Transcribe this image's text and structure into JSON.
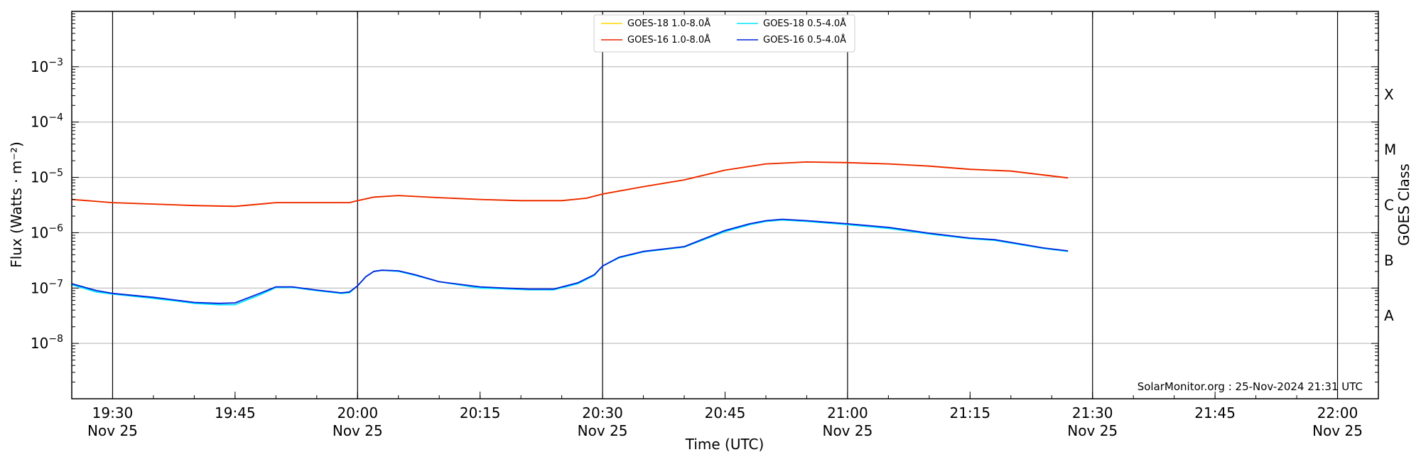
{
  "chart_data": {
    "type": "line",
    "xlabel": "Time (UTC)",
    "ylabel": "Flux (Watts · m⁻²)",
    "right_label": "GOES Class",
    "watermark": "SolarMonitor.org : 25-Nov-2024 21:31 UTC",
    "x_range": [
      "19:25",
      "22:05"
    ],
    "ylim": [
      1e-09,
      0.01
    ],
    "y_scale": "log",
    "grid": "horizontal at decades, vertical lines every 30 min",
    "legend_position": "top-center",
    "x_ticks": [
      {
        "t": "19:30",
        "label": "19:30",
        "date": "Nov 25"
      },
      {
        "t": "19:45",
        "label": "19:45",
        "date": ""
      },
      {
        "t": "20:00",
        "label": "20:00",
        "date": "Nov 25"
      },
      {
        "t": "20:15",
        "label": "20:15",
        "date": ""
      },
      {
        "t": "20:30",
        "label": "20:30",
        "date": "Nov 25"
      },
      {
        "t": "20:45",
        "label": "20:45",
        "date": ""
      },
      {
        "t": "21:00",
        "label": "21:00",
        "date": "Nov 25"
      },
      {
        "t": "21:15",
        "label": "21:15",
        "date": ""
      },
      {
        "t": "21:30",
        "label": "21:30",
        "date": "Nov 25"
      },
      {
        "t": "21:45",
        "label": "21:45",
        "date": ""
      },
      {
        "t": "22:00",
        "label": "22:00",
        "date": "Nov 25"
      }
    ],
    "y_ticks": [
      {
        "exp": -8,
        "label": "10",
        "sup": "−8"
      },
      {
        "exp": -7,
        "label": "10",
        "sup": "−7"
      },
      {
        "exp": -6,
        "label": "10",
        "sup": "−6"
      },
      {
        "exp": -5,
        "label": "10",
        "sup": "−5"
      },
      {
        "exp": -4,
        "label": "10",
        "sup": "−4"
      },
      {
        "exp": -3,
        "label": "10",
        "sup": "−3"
      }
    ],
    "classes": [
      {
        "label": "A",
        "exp": -7.5
      },
      {
        "label": "B",
        "exp": -6.5
      },
      {
        "label": "C",
        "exp": -5.5
      },
      {
        "label": "M",
        "exp": -4.5
      },
      {
        "label": "X",
        "exp": -3.5
      }
    ],
    "series": [
      {
        "name": "GOES-18 1.0-8.0Å",
        "color": "#ffd700",
        "x": [
          "19:25",
          "19:30",
          "19:35",
          "19:40",
          "19:45",
          "19:50",
          "19:55",
          "19:59",
          "20:00",
          "20:02",
          "20:05",
          "20:10",
          "20:15",
          "20:20",
          "20:25",
          "20:28",
          "20:30",
          "20:35",
          "20:40",
          "20:45",
          "20:50",
          "20:55",
          "21:00",
          "21:05",
          "21:10",
          "21:15",
          "21:20",
          "21:27"
        ],
        "y": [
          4e-06,
          3.5e-06,
          3.3e-06,
          3.1e-06,
          3e-06,
          3.5e-06,
          3.5e-06,
          3.5e-06,
          3.8e-06,
          4.4e-06,
          4.7e-06,
          4.3e-06,
          4e-06,
          3.8e-06,
          3.8e-06,
          4.2e-06,
          5e-06,
          6.8e-06,
          9e-06,
          1.35e-05,
          1.75e-05,
          1.9e-05,
          1.85e-05,
          1.75e-05,
          1.6e-05,
          1.4e-05,
          1.3e-05,
          9.8e-06
        ]
      },
      {
        "name": "GOES-16 1.0-8.0Å",
        "color": "#ee2200",
        "x": [
          "19:25",
          "19:30",
          "19:35",
          "19:40",
          "19:45",
          "19:50",
          "19:55",
          "19:59",
          "20:00",
          "20:02",
          "20:05",
          "20:10",
          "20:15",
          "20:20",
          "20:25",
          "20:28",
          "20:30",
          "20:35",
          "20:40",
          "20:45",
          "20:50",
          "20:55",
          "21:00",
          "21:05",
          "21:10",
          "21:15",
          "21:20",
          "21:27"
        ],
        "y": [
          4e-06,
          3.5e-06,
          3.3e-06,
          3.1e-06,
          3e-06,
          3.5e-06,
          3.5e-06,
          3.5e-06,
          3.8e-06,
          4.4e-06,
          4.7e-06,
          4.3e-06,
          4e-06,
          3.8e-06,
          3.8e-06,
          4.2e-06,
          5e-06,
          6.8e-06,
          9e-06,
          1.35e-05,
          1.75e-05,
          1.9e-05,
          1.85e-05,
          1.75e-05,
          1.6e-05,
          1.4e-05,
          1.3e-05,
          9.8e-06
        ]
      },
      {
        "name": "GOES-18 0.5-4.0Å",
        "color": "#00e5ff",
        "x": [
          "19:25",
          "19:28",
          "19:30",
          "19:35",
          "19:38",
          "19:40",
          "19:43",
          "19:45",
          "19:48",
          "19:50",
          "19:52",
          "19:55",
          "19:58",
          "19:59",
          "20:00",
          "20:01",
          "20:02",
          "20:03",
          "20:05",
          "20:07",
          "20:10",
          "20:15",
          "20:18",
          "20:21",
          "20:24",
          "20:27",
          "20:29",
          "20:30",
          "20:32",
          "20:35",
          "20:40",
          "20:45",
          "20:48",
          "20:50",
          "20:52",
          "20:55",
          "21:00",
          "21:05",
          "21:10",
          "21:15",
          "21:18",
          "21:20",
          "21:24",
          "21:27"
        ],
        "y": [
          1.15e-07,
          8.5e-08,
          7.8e-08,
          6.5e-08,
          5.8e-08,
          5.3e-08,
          5e-08,
          5e-08,
          7.5e-08,
          1.02e-07,
          1.03e-07,
          9e-08,
          8e-08,
          8.2e-08,
          1.1e-07,
          1.6e-07,
          2e-07,
          2.1e-07,
          2e-07,
          1.7e-07,
          1.3e-07,
          1e-07,
          9.7e-08,
          9.3e-08,
          9.3e-08,
          1.2e-07,
          1.7e-07,
          2.5e-07,
          3.5e-07,
          4.5e-07,
          5.5e-07,
          1.05e-06,
          1.4e-06,
          1.6e-06,
          1.7e-06,
          1.6e-06,
          1.4e-06,
          1.2e-06,
          9.5e-07,
          7.8e-07,
          7.3e-07,
          6.5e-07,
          5.2e-07,
          4.6e-07
        ]
      },
      {
        "name": "GOES-16 0.5-4.0Å",
        "color": "#0022dd",
        "x": [
          "19:25",
          "19:28",
          "19:30",
          "19:35",
          "19:38",
          "19:40",
          "19:43",
          "19:45",
          "19:48",
          "19:50",
          "19:52",
          "19:55",
          "19:58",
          "19:59",
          "20:00",
          "20:01",
          "20:02",
          "20:03",
          "20:05",
          "20:07",
          "20:10",
          "20:15",
          "20:18",
          "20:21",
          "20:24",
          "20:27",
          "20:29",
          "20:30",
          "20:32",
          "20:35",
          "20:40",
          "20:45",
          "20:48",
          "20:50",
          "20:52",
          "20:55",
          "21:00",
          "21:05",
          "21:10",
          "21:15",
          "21:18",
          "21:20",
          "21:24",
          "21:27"
        ],
        "y": [
          1.2e-07,
          9e-08,
          8e-08,
          6.8e-08,
          6e-08,
          5.5e-08,
          5.3e-08,
          5.4e-08,
          8e-08,
          1.05e-07,
          1.05e-07,
          9.2e-08,
          8.2e-08,
          8.5e-08,
          1.1e-07,
          1.6e-07,
          2e-07,
          2.1e-07,
          2.05e-07,
          1.75e-07,
          1.3e-07,
          1.05e-07,
          1e-07,
          9.6e-08,
          9.6e-08,
          1.25e-07,
          1.75e-07,
          2.5e-07,
          3.6e-07,
          4.6e-07,
          5.6e-07,
          1.1e-06,
          1.45e-06,
          1.65e-06,
          1.75e-06,
          1.65e-06,
          1.45e-06,
          1.25e-06,
          9.8e-07,
          8e-07,
          7.5e-07,
          6.7e-07,
          5.3e-07,
          4.7e-07
        ]
      }
    ]
  }
}
